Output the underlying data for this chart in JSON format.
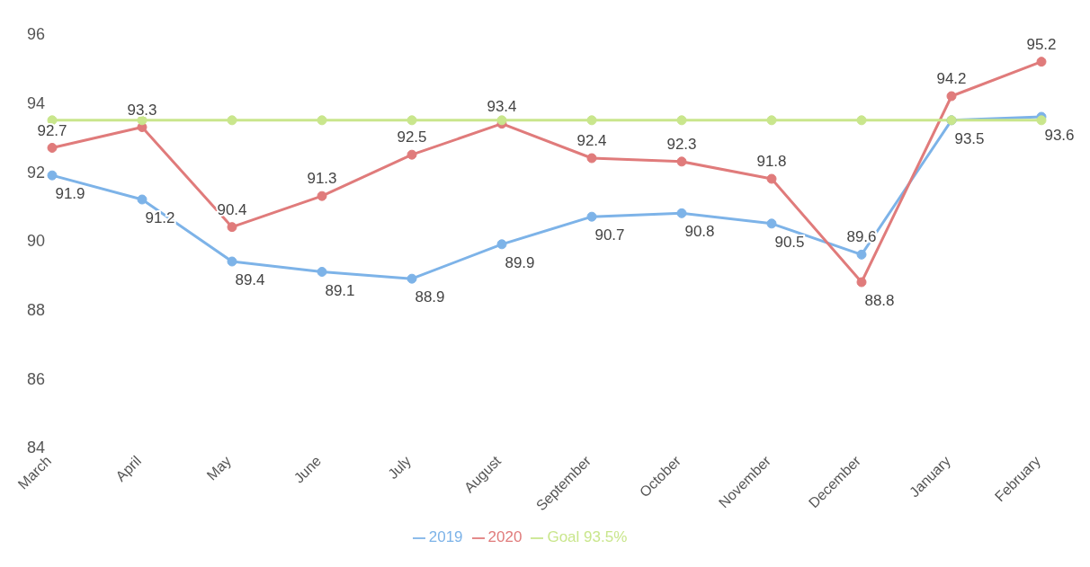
{
  "chart_data": {
    "type": "line",
    "categories": [
      "March",
      "April",
      "May",
      "June",
      "July",
      "August",
      "September",
      "October",
      "November",
      "December",
      "January",
      "February"
    ],
    "series": [
      {
        "name": "2019",
        "color": "#7db3e8",
        "values": [
          91.9,
          91.2,
          89.4,
          89.1,
          88.9,
          89.9,
          90.7,
          90.8,
          90.5,
          89.6,
          93.5,
          93.6
        ],
        "value_labels": [
          "91.9",
          "91.2",
          "89.4",
          "89.1",
          "88.9",
          "89.9",
          "90.7",
          "90.8",
          "90.5",
          "89.6",
          "93.5",
          "93.6"
        ]
      },
      {
        "name": "2020",
        "color": "#e07b7b",
        "values": [
          92.7,
          93.3,
          90.4,
          91.3,
          92.5,
          93.4,
          92.4,
          92.3,
          91.8,
          88.8,
          94.2,
          95.2
        ],
        "value_labels": [
          "92.7",
          "93.3",
          "90.4",
          "91.3",
          "92.5",
          "93.4",
          "92.4",
          "92.3",
          "91.8",
          "88.8",
          "94.2",
          "95.2"
        ]
      },
      {
        "name": "Goal 93.5%",
        "color": "#c9e68c",
        "values": [
          93.5,
          93.5,
          93.5,
          93.5,
          93.5,
          93.5,
          93.5,
          93.5,
          93.5,
          93.5,
          93.5,
          93.5
        ]
      }
    ],
    "ylim": [
      84,
      96
    ],
    "yticks": [
      84,
      86,
      88,
      90,
      92,
      94,
      96
    ],
    "legend": "bottom",
    "marker": "circle",
    "line_style": "solid"
  }
}
